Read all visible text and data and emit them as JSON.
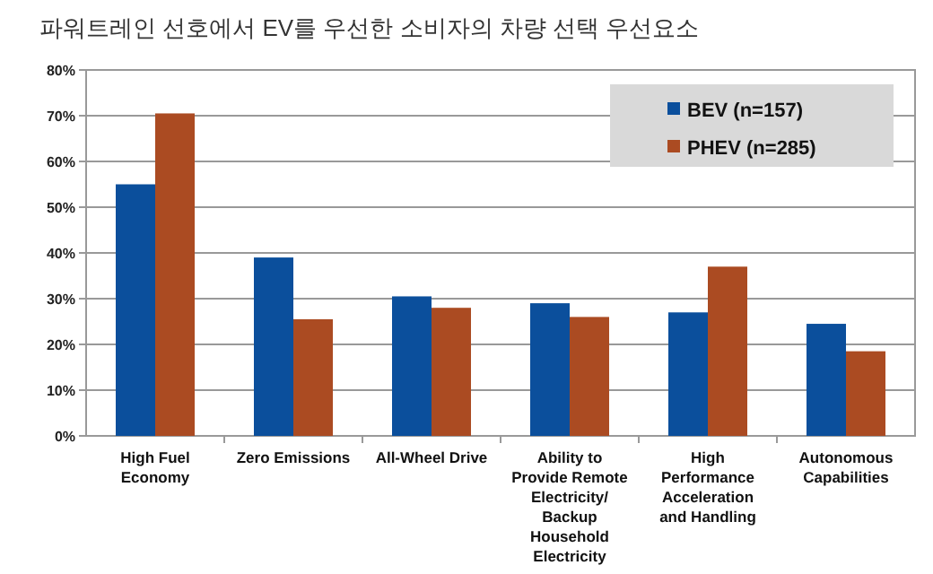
{
  "chart_data": {
    "type": "bar",
    "title": "파워트레인 선호에서 EV를 우선한 소비자의 차량 선택 우선요소",
    "categories": [
      "High Fuel Economy",
      "Zero Emissions",
      "All-Wheel Drive",
      "Ability to Provide Remote Electricity/ Backup Household Electricity",
      "High Performance Acceleration and Handling",
      "Autonomous Capabilities"
    ],
    "series": [
      {
        "name": "BEV (n=157)",
        "color": "#0b4f9c",
        "values": [
          55,
          39,
          30.5,
          29,
          27,
          24.5
        ]
      },
      {
        "name": "PHEV (n=285)",
        "color": "#ab4b22",
        "values": [
          70.5,
          25.5,
          28,
          26,
          37,
          18.5
        ]
      }
    ],
    "ylim": [
      0,
      80
    ],
    "yticks": [
      {
        "value": 0,
        "label": "0%"
      },
      {
        "value": 10,
        "label": "10%"
      },
      {
        "value": 20,
        "label": "20%"
      },
      {
        "value": 30,
        "label": "30%"
      },
      {
        "value": 40,
        "label": "40%"
      },
      {
        "value": 50,
        "label": "50%"
      },
      {
        "value": 60,
        "label": "60%"
      },
      {
        "value": 70,
        "label": "70%"
      },
      {
        "value": 80,
        "label": "80%"
      }
    ],
    "grid": "y",
    "legend": "top right"
  }
}
